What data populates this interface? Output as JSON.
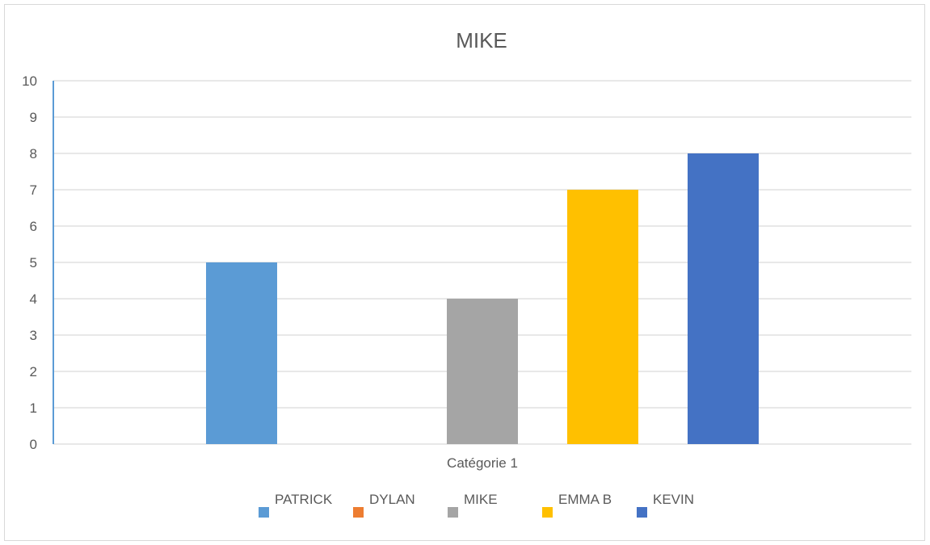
{
  "chart_data": {
    "type": "bar",
    "title": "MIKE",
    "categories": [
      "Catégorie 1"
    ],
    "series": [
      {
        "name": "PATRICK",
        "values": [
          5
        ],
        "color": "#5b9bd5"
      },
      {
        "name": "DYLAN",
        "values": [
          0
        ],
        "color": "#ed7d31"
      },
      {
        "name": "MIKE",
        "values": [
          4
        ],
        "color": "#a5a5a5"
      },
      {
        "name": "EMMA B",
        "values": [
          7
        ],
        "color": "#ffc000"
      },
      {
        "name": "KEVIN",
        "values": [
          8
        ],
        "color": "#4472c4"
      }
    ],
    "ylim": [
      0,
      10
    ],
    "yticks": [
      "0",
      "1",
      "2",
      "3",
      "4",
      "5",
      "6",
      "7",
      "8",
      "9",
      "10"
    ],
    "grid": true,
    "legend_position": "bottom",
    "axis_color": "#5b9bd5",
    "grid_color": "#d9d9d9"
  }
}
